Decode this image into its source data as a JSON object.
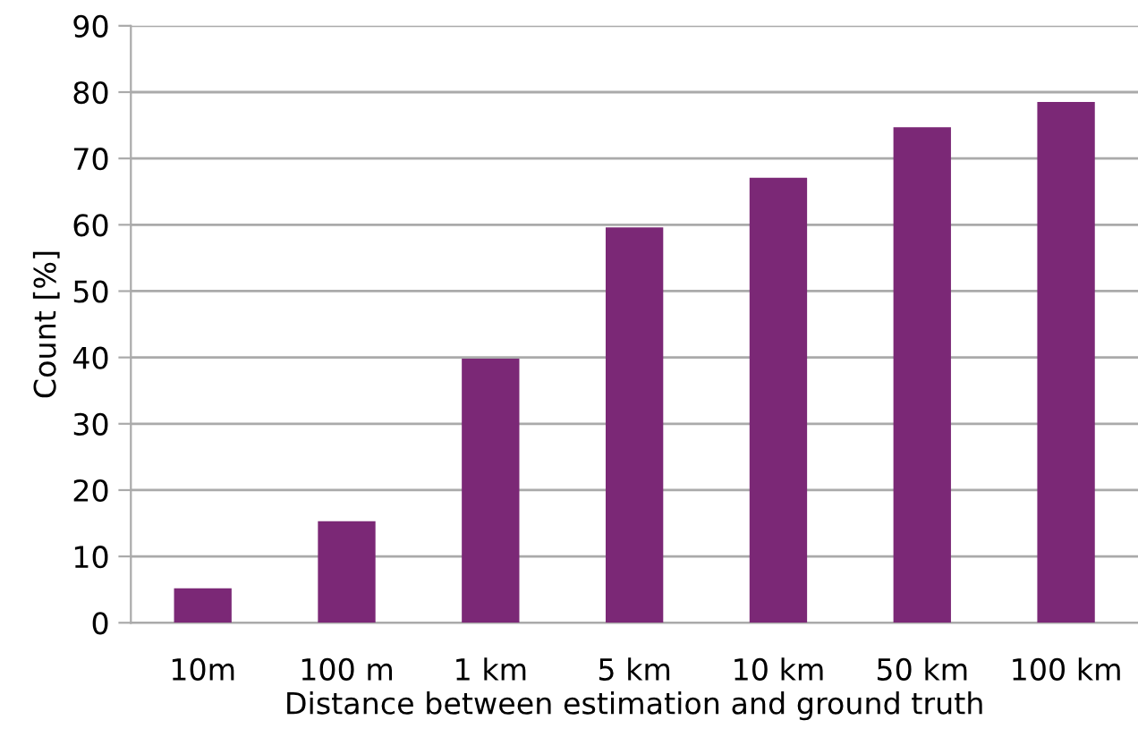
{
  "chart_data": {
    "type": "bar",
    "categories": [
      "10m",
      "100 m",
      "1 km",
      "5 km",
      "10 km",
      "50 km",
      "100 km"
    ],
    "values": [
      5.2,
      15.3,
      39.8,
      59.6,
      67.1,
      74.7,
      78.5
    ],
    "color": "#7b2876",
    "xlabel": "Distance between estimation and ground truth",
    "ylabel": "Count [%]",
    "ylim": [
      0,
      90
    ],
    "yticks": [
      0,
      10,
      20,
      30,
      40,
      50,
      60,
      70,
      80,
      90
    ],
    "grid": "y",
    "legend": false
  }
}
